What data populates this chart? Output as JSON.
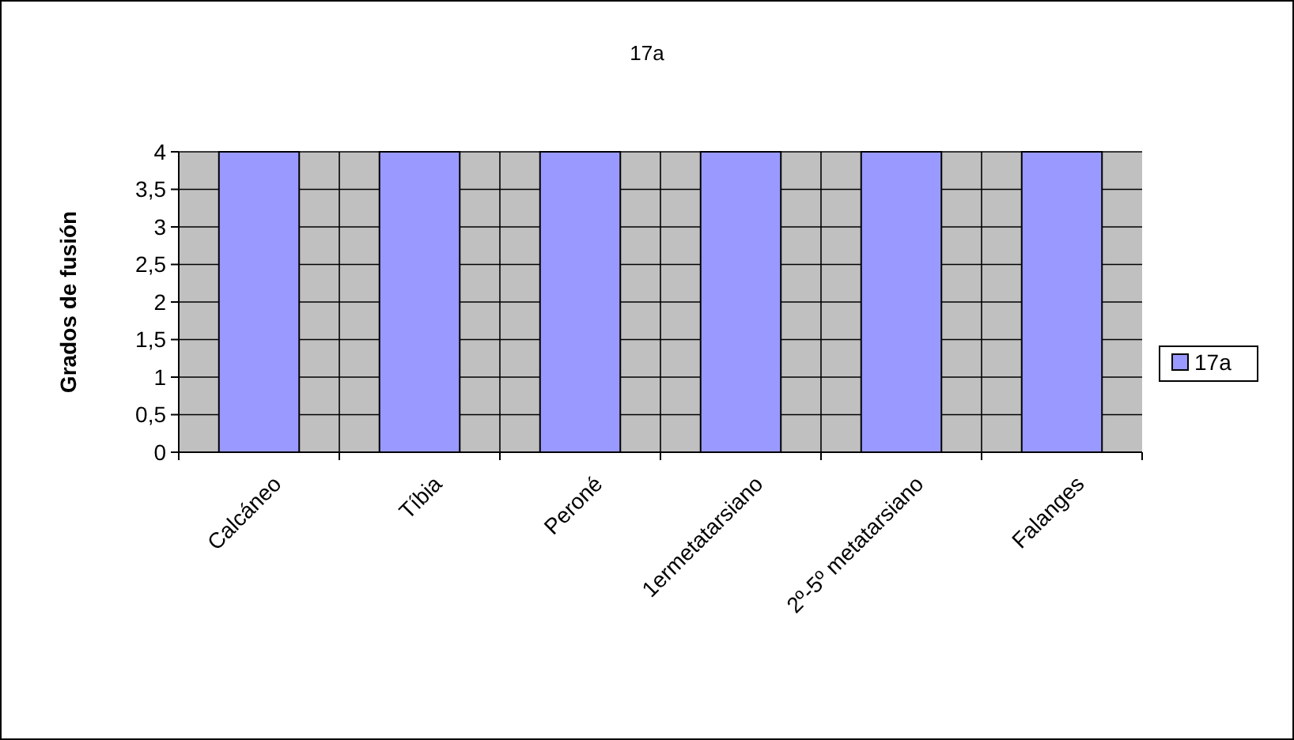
{
  "chart_data": {
    "type": "bar",
    "title": "17a",
    "ylabel": "Grados de fusión",
    "categories": [
      "Calcáneo",
      "Tíbia",
      "Peroné",
      "1ermetatarsiano",
      "2º-5º metatarsiano",
      "Falanges"
    ],
    "series": [
      {
        "name": "17a",
        "color": "#9999ff",
        "values": [
          4,
          4,
          4,
          4,
          4,
          4
        ]
      }
    ],
    "ylim": [
      0,
      4
    ],
    "yticks": [
      0,
      {
        "value": 0.5,
        "label": "0,5"
      },
      1,
      {
        "value": 1.5,
        "label": "1,5"
      },
      2,
      {
        "value": 2.5,
        "label": "2,5"
      },
      3,
      {
        "value": 3.5,
        "label": "3,5"
      },
      4
    ],
    "grid": true,
    "legend": "right"
  }
}
